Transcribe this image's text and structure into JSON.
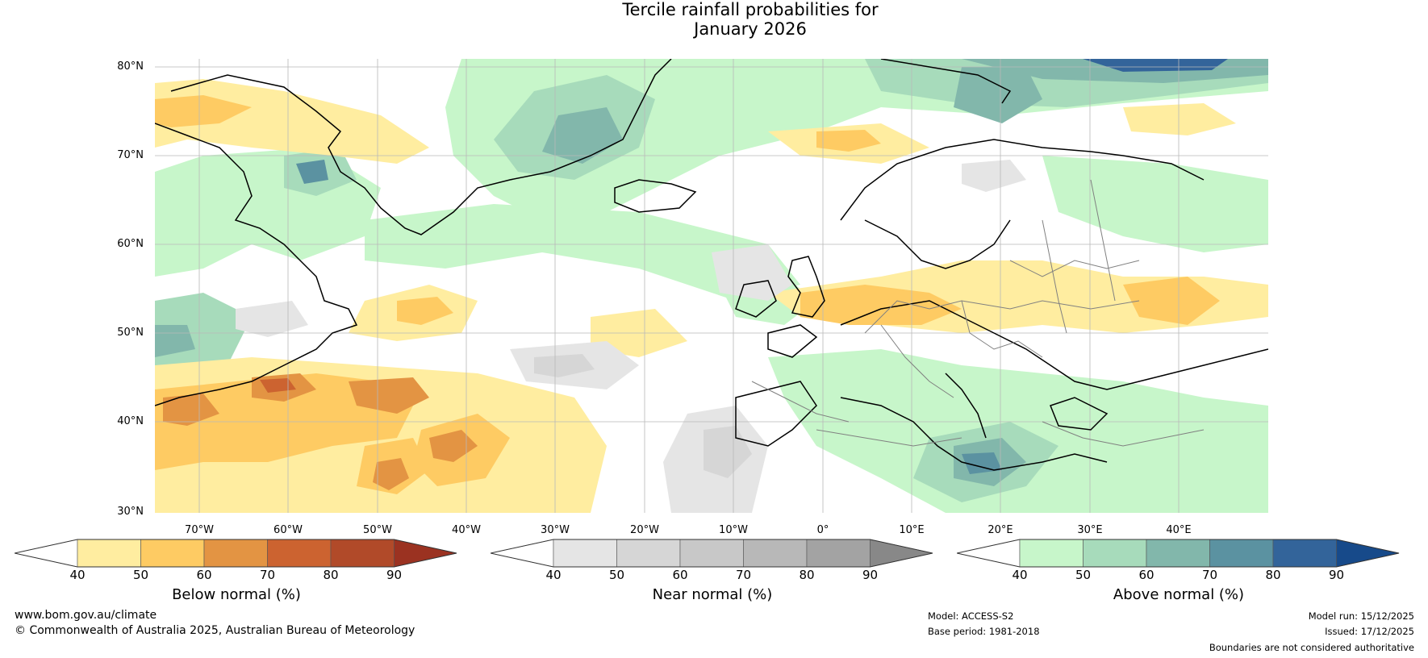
{
  "title_line1": "Tercile rainfall probabilities for",
  "title_line2": "January 2026",
  "lat_labels": [
    "80°N",
    "70°N",
    "60°N",
    "50°N",
    "40°N",
    "30°N"
  ],
  "lon_labels": [
    "70°W",
    "60°W",
    "50°W",
    "40°W",
    "30°W",
    "20°W",
    "10°W",
    "0°",
    "10°E",
    "20°E",
    "30°E",
    "40°E"
  ],
  "colorbars": {
    "below": {
      "label": "Below normal (%)",
      "ticks": [
        "40",
        "50",
        "60",
        "70",
        "80",
        "90"
      ],
      "colors": [
        "#ffffff",
        "#ffeda0",
        "#fecb63",
        "#e39443",
        "#cc6330",
        "#b14a29",
        "#9b3221"
      ]
    },
    "near": {
      "label": "Near normal (%)",
      "ticks": [
        "40",
        "50",
        "60",
        "70",
        "80",
        "90"
      ],
      "colors": [
        "#ffffff",
        "#e5e5e5",
        "#d6d6d6",
        "#c8c8c8",
        "#b8b8b8",
        "#a3a3a3",
        "#888888"
      ]
    },
    "above": {
      "label": "Above normal (%)",
      "ticks": [
        "40",
        "50",
        "60",
        "70",
        "80",
        "90"
      ],
      "colors": [
        "#ffffff",
        "#c7f6ca",
        "#a7dbbb",
        "#82b7ab",
        "#5b92a1",
        "#33649a",
        "#174a8a"
      ]
    }
  },
  "footer": {
    "website": "www.bom.gov.au/climate",
    "copyright": "© Commonwealth of Australia 2025, Australian Bureau of Meteorology",
    "model": "Model: ACCESS-S2",
    "base_period": "Base period: 1981-2018",
    "model_run": "Model run: 15/12/2025",
    "issued": "Issued: 17/12/2025",
    "disclaimer": "Boundaries are not considered authoritative"
  }
}
